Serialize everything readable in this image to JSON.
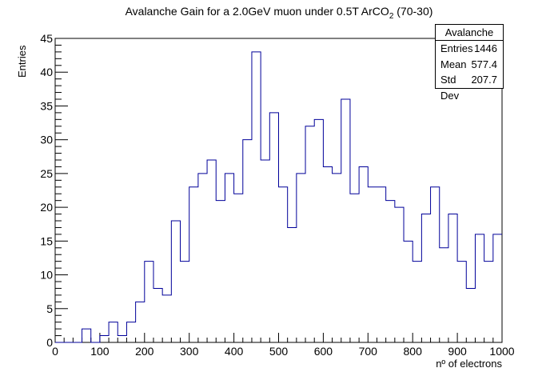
{
  "chart_data": {
    "type": "histogram",
    "title_main": "Avalanche Gain for a 2.0GeV muon under 0.5T ArCO",
    "title_sub": "2",
    "title_tail": " (70-30)",
    "xlabel": "nº of electrons",
    "ylabel": "Entries",
    "xlim": [
      0,
      1000
    ],
    "ylim": [
      0,
      45
    ],
    "bin_width": 20,
    "x_ticks": [
      0,
      100,
      200,
      300,
      400,
      500,
      600,
      700,
      800,
      900,
      1000
    ],
    "y_ticks": [
      0,
      5,
      10,
      15,
      20,
      25,
      30,
      35,
      40,
      45
    ],
    "values": [
      0,
      0,
      0,
      2,
      0,
      1,
      3,
      1,
      3,
      6,
      12,
      8,
      7,
      18,
      12,
      23,
      25,
      27,
      21,
      25,
      22,
      30,
      43,
      27,
      34,
      23,
      17,
      25,
      32,
      33,
      26,
      25,
      36,
      22,
      26,
      23,
      23,
      21,
      20,
      15,
      12,
      19,
      23,
      14,
      19,
      12,
      8,
      16,
      12,
      16
    ],
    "line_color": "#000099",
    "grid": false
  },
  "stats_box": {
    "name": "Avalanche",
    "rows": [
      {
        "label": "Entries",
        "value": "1446"
      },
      {
        "label": "Mean",
        "value": "577.4"
      },
      {
        "label": "Std Dev",
        "value": "207.7"
      }
    ]
  }
}
